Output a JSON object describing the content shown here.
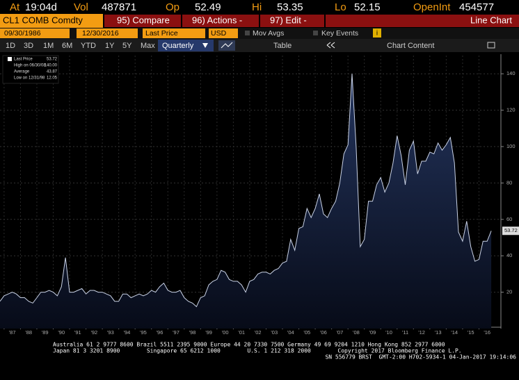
{
  "quote": [
    [
      "At",
      "19:04d"
    ],
    [
      "Vol",
      "487871"
    ],
    [
      "Op",
      "52.49"
    ],
    [
      "Hi",
      "53.35"
    ],
    [
      "Lo",
      "52.15"
    ],
    [
      "OpenInt",
      "454577"
    ]
  ],
  "ticker": "CL1 COMB Comdty",
  "menu": [
    "95) Compare",
    "96) Actions -",
    "97) Edit -"
  ],
  "view": "Line Chart",
  "controls": {
    "start": "09/30/1986",
    "end": "12/30/2016",
    "field": "Last Price",
    "currency": "USD",
    "mov_avgs": "Mov Avgs",
    "key_events": "Key Events"
  },
  "periods": [
    "1D",
    "3D",
    "1M",
    "6M",
    "YTD",
    "1Y",
    "5Y",
    "Max"
  ],
  "frequency": "Quarterly",
  "table": "Table",
  "chart_content": "Chart Content",
  "legend": [
    {
      "label": "Last Price",
      "value": "53.72"
    },
    {
      "label": "High on 06/30/08",
      "value": "140.00"
    },
    {
      "label": "Average",
      "value": "43.87"
    },
    {
      "label": "Low on 12/31/98",
      "value": "12.05"
    }
  ],
  "footer": [
    "Australia 61 2 9777 8600 Brazil 5511 2395 9000 Europe 44 20 7330 7500 Germany 49 69 9204 1210 Hong Kong 852 2977 6000",
    "Japan 81 3 3201 8900        Singapore 65 6212 1000        U.S. 1 212 318 2000        Copyright 2017 Bloomberg Finance L.P.",
    "SN 556779 BRST  GMT-2:00 H702-5934-1 04-Jan-2017 19:14:06"
  ],
  "chart_data": {
    "type": "line",
    "x": [
      1986.75,
      1987,
      1987.25,
      1987.5,
      1987.75,
      1988,
      1988.25,
      1988.5,
      1988.75,
      1989,
      1989.25,
      1989.5,
      1989.75,
      1990,
      1990.25,
      1990.5,
      1990.75,
      1991,
      1991.25,
      1991.5,
      1991.75,
      1992,
      1992.25,
      1992.5,
      1992.75,
      1993,
      1993.25,
      1993.5,
      1993.75,
      1994,
      1994.25,
      1994.5,
      1994.75,
      1995,
      1995.25,
      1995.5,
      1995.75,
      1996,
      1996.25,
      1996.5,
      1996.75,
      1997,
      1997.25,
      1997.5,
      1997.75,
      1998,
      1998.25,
      1998.5,
      1998.75,
      1999,
      1999.25,
      1999.5,
      1999.75,
      2000,
      2000.25,
      2000.5,
      2000.75,
      2001,
      2001.25,
      2001.5,
      2001.75,
      2002,
      2002.25,
      2002.5,
      2002.75,
      2003,
      2003.25,
      2003.5,
      2003.75,
      2004,
      2004.25,
      2004.5,
      2004.75,
      2005,
      2005.25,
      2005.5,
      2005.75,
      2006,
      2006.25,
      2006.5,
      2006.75,
      2007,
      2007.25,
      2007.5,
      2007.75,
      2008,
      2008.25,
      2008.5,
      2008.75,
      2009,
      2009.25,
      2009.5,
      2009.75,
      2010,
      2010.25,
      2010.5,
      2010.75,
      2011,
      2011.25,
      2011.5,
      2011.75,
      2012,
      2012.25,
      2012.5,
      2012.75,
      2013,
      2013.25,
      2013.5,
      2013.75,
      2014,
      2014.25,
      2014.5,
      2014.75,
      2015,
      2015.25,
      2015.5,
      2015.75,
      2016,
      2016.25,
      2016.5,
      2016.75
    ],
    "series": [
      {
        "name": "Last Price",
        "color": "#c9d2e6",
        "values": [
          15,
          18,
          19,
          20,
          19,
          17,
          17,
          15,
          14,
          17,
          20,
          20,
          21,
          20,
          18,
          23,
          39,
          20,
          20,
          21,
          22,
          19,
          21,
          21,
          20,
          20,
          19,
          18,
          15,
          15,
          19,
          19,
          17,
          18,
          19,
          18,
          19,
          21,
          20,
          23,
          25,
          21,
          20,
          20,
          21,
          17,
          15,
          14,
          12.05,
          17,
          18,
          24,
          26,
          27,
          32,
          31,
          27,
          26,
          26,
          24,
          20,
          26,
          27,
          30,
          31,
          31,
          30,
          32,
          33,
          36,
          37,
          49,
          43,
          55,
          56,
          66,
          61,
          66,
          74,
          63,
          61,
          66,
          70,
          80,
          96,
          101,
          140,
          100,
          45,
          49,
          70,
          70,
          79,
          83,
          75,
          80,
          91,
          106,
          95,
          79,
          98,
          103,
          85,
          92,
          92,
          97,
          96,
          102,
          98,
          101,
          105,
          91,
          53,
          48,
          59,
          45,
          37,
          38,
          48,
          48,
          53.72
        ]
      }
    ],
    "last_tag": "53.72",
    "xlim": [
      1986.75,
      2017.0
    ],
    "xticks": [
      {
        "value": 1987,
        "label": "'87"
      },
      {
        "value": 1988,
        "label": "'88"
      },
      {
        "value": 1989,
        "label": "'89"
      },
      {
        "value": 1990,
        "label": "'90"
      },
      {
        "value": 1991,
        "label": "'91"
      },
      {
        "value": 1992,
        "label": "'92"
      },
      {
        "value": 1993,
        "label": "'93"
      },
      {
        "value": 1994,
        "label": "'94"
      },
      {
        "value": 1995,
        "label": "'95"
      },
      {
        "value": 1996,
        "label": "'96"
      },
      {
        "value": 1997,
        "label": "'97"
      },
      {
        "value": 1998,
        "label": "'98"
      },
      {
        "value": 1999,
        "label": "'99"
      },
      {
        "value": 2000,
        "label": "'00"
      },
      {
        "value": 2001,
        "label": "'01"
      },
      {
        "value": 2002,
        "label": "'02"
      },
      {
        "value": 2003,
        "label": "'03"
      },
      {
        "value": 2004,
        "label": "'04"
      },
      {
        "value": 2005,
        "label": "'05"
      },
      {
        "value": 2006,
        "label": "'06"
      },
      {
        "value": 2007,
        "label": "'07"
      },
      {
        "value": 2008,
        "label": "'08"
      },
      {
        "value": 2009,
        "label": "'09"
      },
      {
        "value": 2010,
        "label": "'10"
      },
      {
        "value": 2011,
        "label": "'11"
      },
      {
        "value": 2012,
        "label": "'12"
      },
      {
        "value": 2013,
        "label": "'13"
      },
      {
        "value": 2014,
        "label": "'14"
      },
      {
        "value": 2015,
        "label": "'15"
      },
      {
        "value": 2016,
        "label": "'16"
      }
    ],
    "ylim": [
      0,
      150
    ],
    "yticks": [
      20,
      40,
      60,
      80,
      100,
      120,
      140
    ],
    "grid": true
  }
}
